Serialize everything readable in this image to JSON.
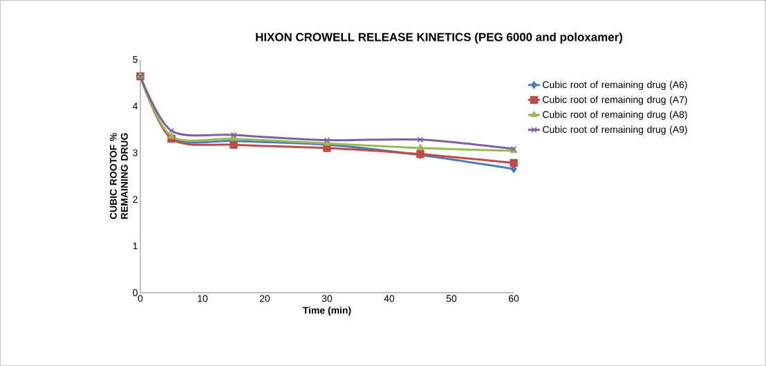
{
  "chart_data": {
    "type": "line",
    "title": "HIXON CROWELL RELEASE KINETICS (PEG 6000 and poloxamer)",
    "xlabel": "Time (min)",
    "ylabel": "CUBIC ROOTOF % REMAINING DRUG",
    "x": [
      0,
      5,
      15,
      30,
      45,
      60
    ],
    "series": [
      {
        "name": "Cubic root of remaining drug (A6)",
        "color": "#4a7ebb",
        "marker": "diamond",
        "values": [
          4.64,
          3.32,
          3.25,
          3.17,
          2.95,
          2.65
        ]
      },
      {
        "name": "Cubic root of remaining drug (A7)",
        "color": "#be4b48",
        "marker": "square",
        "values": [
          4.64,
          3.3,
          3.17,
          3.1,
          2.97,
          2.78
        ]
      },
      {
        "name": "Cubic root of remaining drug (A8)",
        "color": "#98b954",
        "marker": "triangle",
        "values": [
          4.64,
          3.35,
          3.3,
          3.2,
          3.1,
          3.04
        ]
      },
      {
        "name": "Cubic root of remaining drug (A9)",
        "color": "#7d60a0",
        "marker": "cross",
        "values": [
          4.64,
          3.47,
          3.38,
          3.27,
          3.28,
          3.08
        ]
      }
    ],
    "xlim": [
      0,
      60
    ],
    "xticks": [
      0,
      10,
      20,
      30,
      40,
      50,
      60
    ],
    "ylim": [
      0,
      5
    ],
    "yticks": [
      0,
      1,
      2,
      3,
      4,
      5
    ],
    "grid": false,
    "legend": "right",
    "line_style": "solid"
  }
}
